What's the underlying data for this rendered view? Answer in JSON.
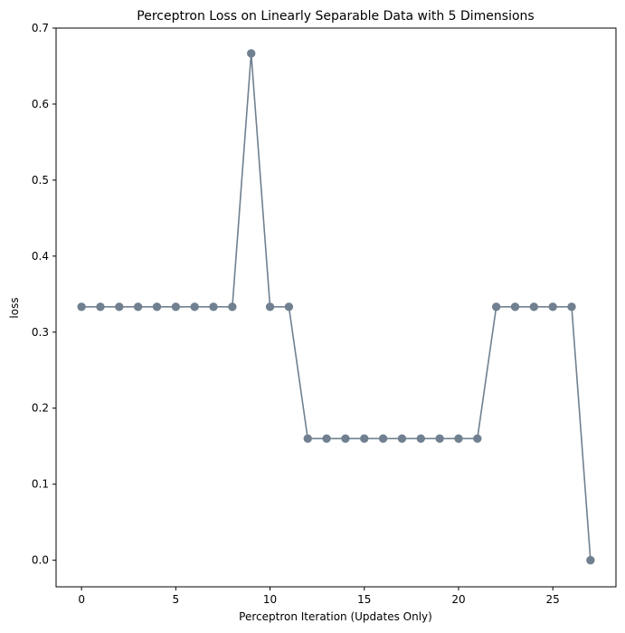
{
  "chart_data": {
    "type": "line",
    "title": "Perceptron Loss on Linearly Separable Data with 5 Dimensions",
    "xlabel": "Perceptron Iteration (Updates Only)",
    "ylabel": "loss",
    "xlim": [
      -1.35,
      28.35
    ],
    "ylim": [
      -0.035,
      0.7
    ],
    "x_ticks": [
      0,
      5,
      10,
      15,
      20,
      25
    ],
    "y_ticks": [
      0.0,
      0.1,
      0.2,
      0.3,
      0.4,
      0.5,
      0.6,
      0.7
    ],
    "x_tick_labels": [
      "0",
      "5",
      "10",
      "15",
      "20",
      "25"
    ],
    "y_tick_labels": [
      "0.0",
      "0.1",
      "0.2",
      "0.3",
      "0.4",
      "0.5",
      "0.6",
      "0.7"
    ],
    "grid": false,
    "series": [
      {
        "color": "#708090",
        "marker": "circle",
        "x": [
          0,
          1,
          2,
          3,
          4,
          5,
          6,
          7,
          8,
          9,
          10,
          11,
          12,
          13,
          14,
          15,
          16,
          17,
          18,
          19,
          20,
          21,
          22,
          23,
          24,
          25,
          26,
          27
        ],
        "y": [
          0.3333,
          0.3333,
          0.3333,
          0.3333,
          0.3333,
          0.3333,
          0.3333,
          0.3333,
          0.3333,
          0.6667,
          0.3333,
          0.3333,
          0.16,
          0.16,
          0.16,
          0.16,
          0.16,
          0.16,
          0.16,
          0.16,
          0.16,
          0.16,
          0.3333,
          0.3333,
          0.3333,
          0.3333,
          0.3333,
          0.0
        ]
      }
    ]
  }
}
